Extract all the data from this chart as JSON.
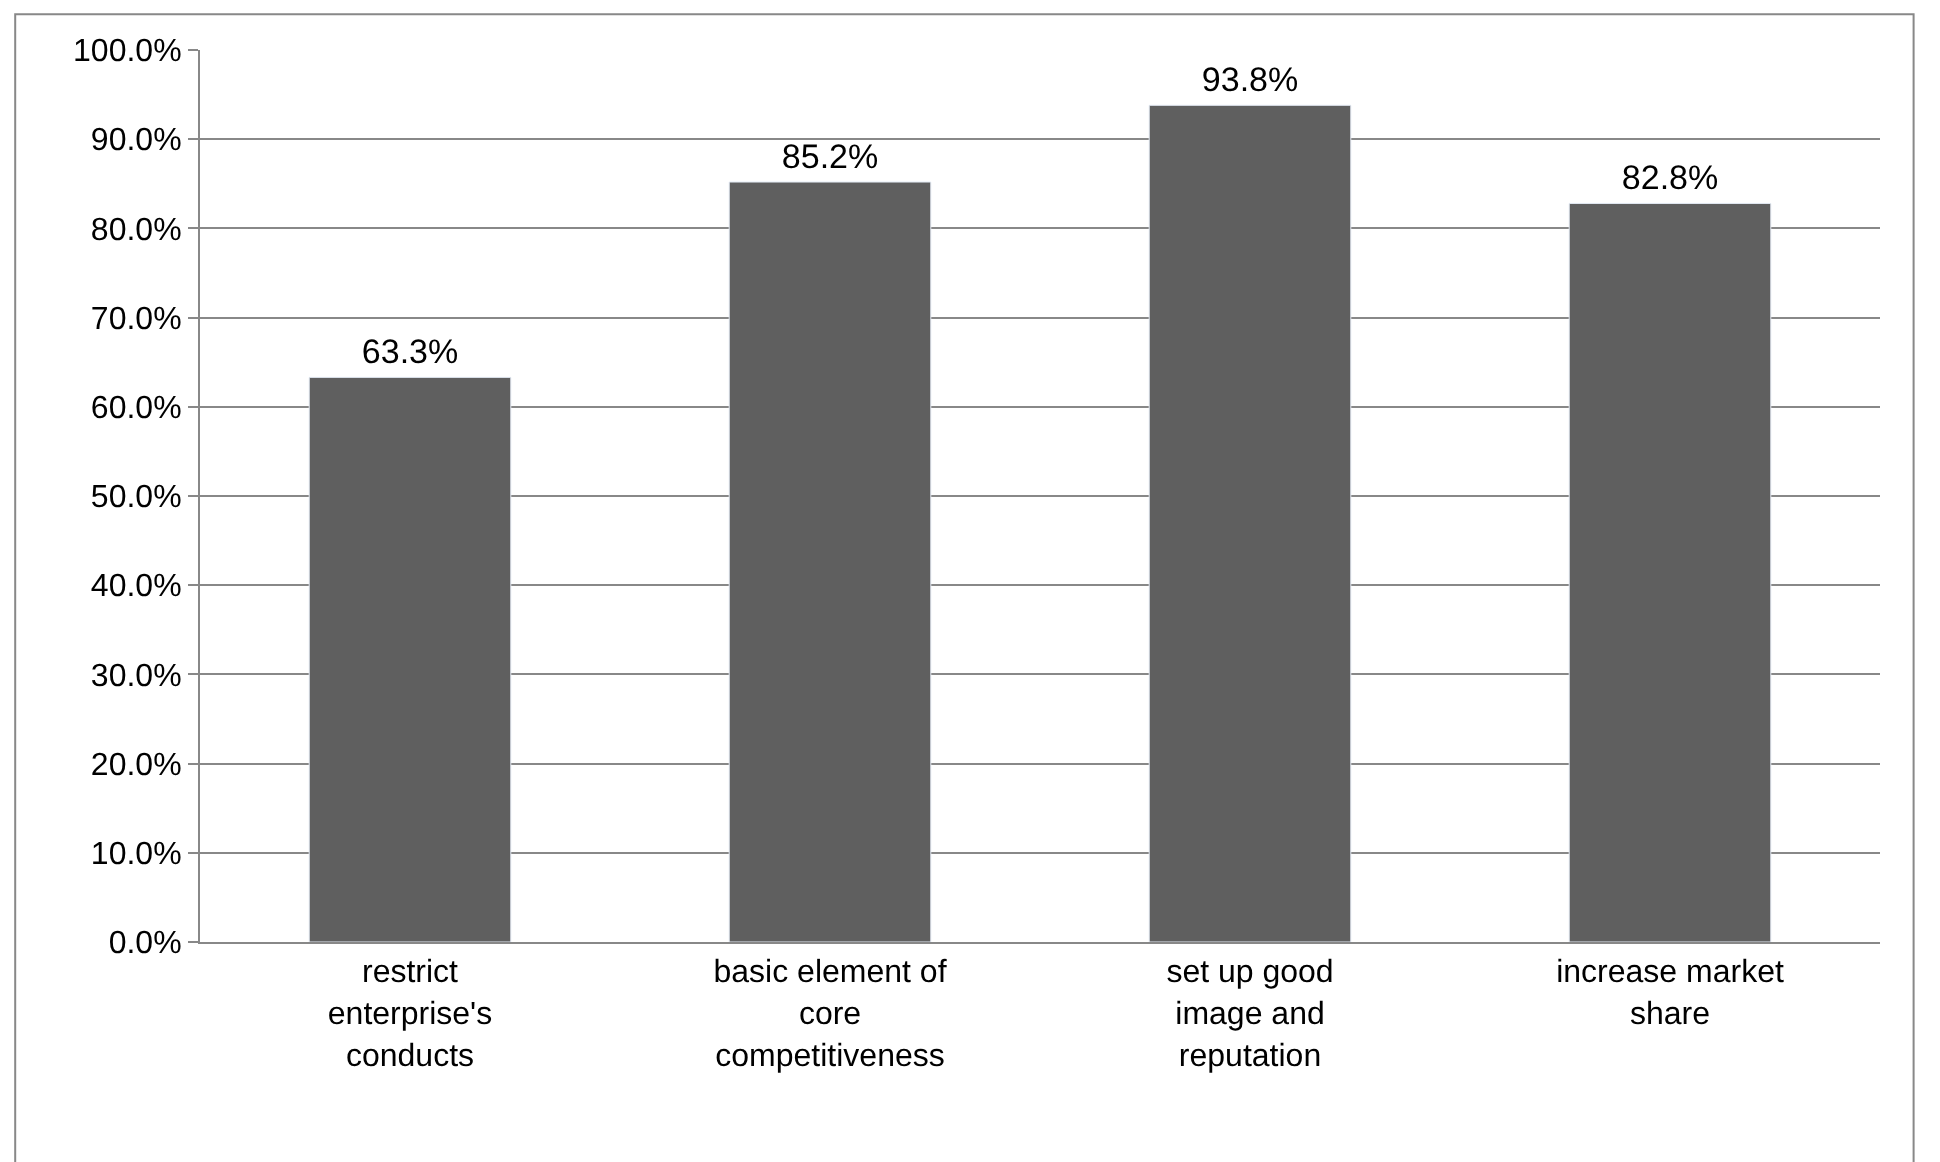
{
  "chart_data": {
    "type": "bar",
    "categories": [
      "restrict enterprise's conducts",
      "basic element of core competitiveness",
      "set up good image and reputation",
      "increase market share"
    ],
    "values": [
      63.3,
      85.2,
      93.8,
      82.8
    ],
    "value_labels": [
      "63.3%",
      "85.2%",
      "93.8%",
      "82.8%"
    ],
    "color": "#5f5f5f",
    "ylim": [
      0,
      100
    ],
    "yticks": [
      {
        "value": 0,
        "label": "0.0%"
      },
      {
        "value": 10,
        "label": "10.0%"
      },
      {
        "value": 20,
        "label": "20.0%"
      },
      {
        "value": 30,
        "label": "30.0%"
      },
      {
        "value": 40,
        "label": "40.0%"
      },
      {
        "value": 50,
        "label": "50.0%"
      },
      {
        "value": 60,
        "label": "60.0%"
      },
      {
        "value": 70,
        "label": "70.0%"
      },
      {
        "value": 80,
        "label": "80.0%"
      },
      {
        "value": 90,
        "label": "90.0%"
      },
      {
        "value": 100,
        "label": "100.0%"
      }
    ],
    "grid": "y",
    "legend": false
  }
}
